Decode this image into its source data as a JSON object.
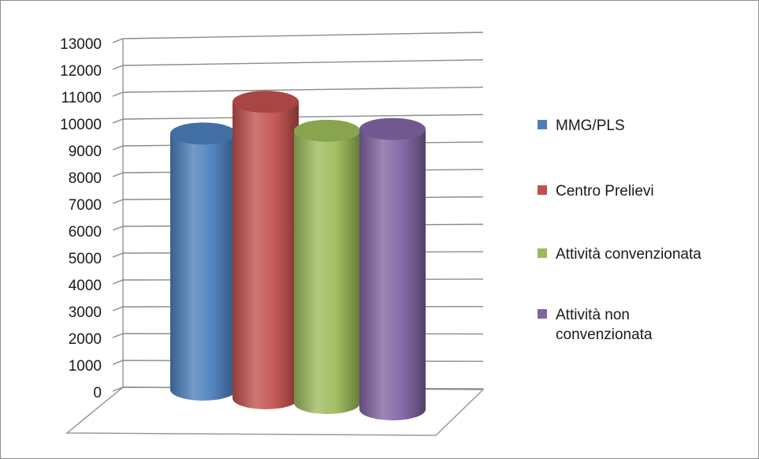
{
  "chart_data": {
    "type": "bar",
    "style": "3d-cylinder",
    "categories": [
      "MMG/PLS",
      "Centro Prelievi",
      "Attività convenzionata",
      "Attività non convenzionata"
    ],
    "values": [
      9500,
      11000,
      10100,
      10400
    ],
    "colors": [
      "#4a7ebb",
      "#c0504d",
      "#9bbb59",
      "#8064a2"
    ],
    "legend": {
      "position": "right",
      "entries": [
        {
          "label": "MMG/PLS",
          "lines": [
            "MMG/PLS"
          ],
          "color": "#4a7ebb"
        },
        {
          "label": "Centro Prelievi",
          "lines": [
            "Centro Prelievi"
          ],
          "color": "#c0504d"
        },
        {
          "label": "Attività convenzionata",
          "lines": [
            "Attività convenzionata"
          ],
          "color": "#9bbb59"
        },
        {
          "label": "Attività non convenzionata",
          "lines": [
            "Attività non",
            "convenzionata"
          ],
          "color": "#8064a2"
        }
      ]
    },
    "yticks": [
      0,
      1000,
      2000,
      3000,
      4000,
      5000,
      6000,
      7000,
      8000,
      9000,
      10000,
      11000,
      12000,
      13000
    ],
    "ylim": [
      0,
      13000
    ],
    "grid": true,
    "title": "",
    "xlabel": "",
    "ylabel": ""
  }
}
